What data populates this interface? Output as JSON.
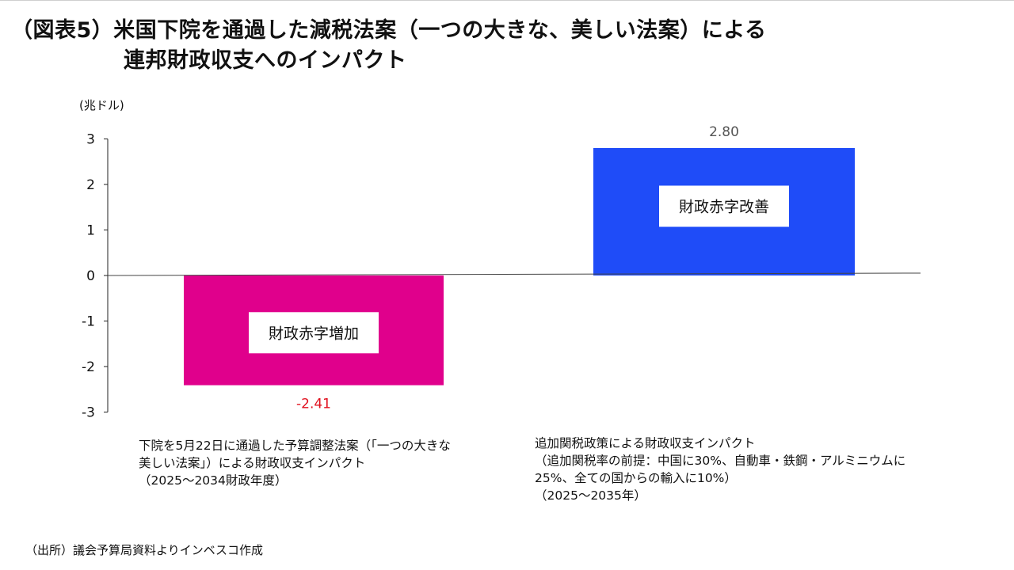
{
  "title": {
    "line1": "（図表5）米国下院を通過した減税法案（一つの大きな、美しい法案）による",
    "line2": "連邦財政収支へのインパクト"
  },
  "unit_label": "(兆ドル)",
  "chart_data": {
    "type": "bar",
    "categories": [
      "下院通過の予算調整法案",
      "追加関税政策"
    ],
    "values": [
      -2.41,
      2.8
    ],
    "value_labels": [
      "-2.41",
      "2.80"
    ],
    "bar_texts": [
      "財政赤字増加",
      "財政赤字改善"
    ],
    "colors": [
      "#e0008c",
      "#1f4cf8"
    ],
    "value_label_colors": [
      "#e0101e",
      "#555555"
    ],
    "ylim": [
      -3,
      3
    ],
    "yticks": [
      3,
      2,
      1,
      0,
      -1,
      -2,
      -3
    ],
    "grid": false
  },
  "descriptions": {
    "left": "下院を5月22日に通過した予算調整法案（「一つの大きな\n美しい法案」）による財政収支インパクト\n（2025～2034財政年度）",
    "right": "追加関税政策による財政収支インパクト\n（追加関税率の前提：中国に30%、自動車・鉄鋼・アルミニウムに\n25%、全ての国からの輸入に10%）\n（2025～2035年）"
  },
  "source": "（出所）議会予算局資料よりインベスコ作成"
}
